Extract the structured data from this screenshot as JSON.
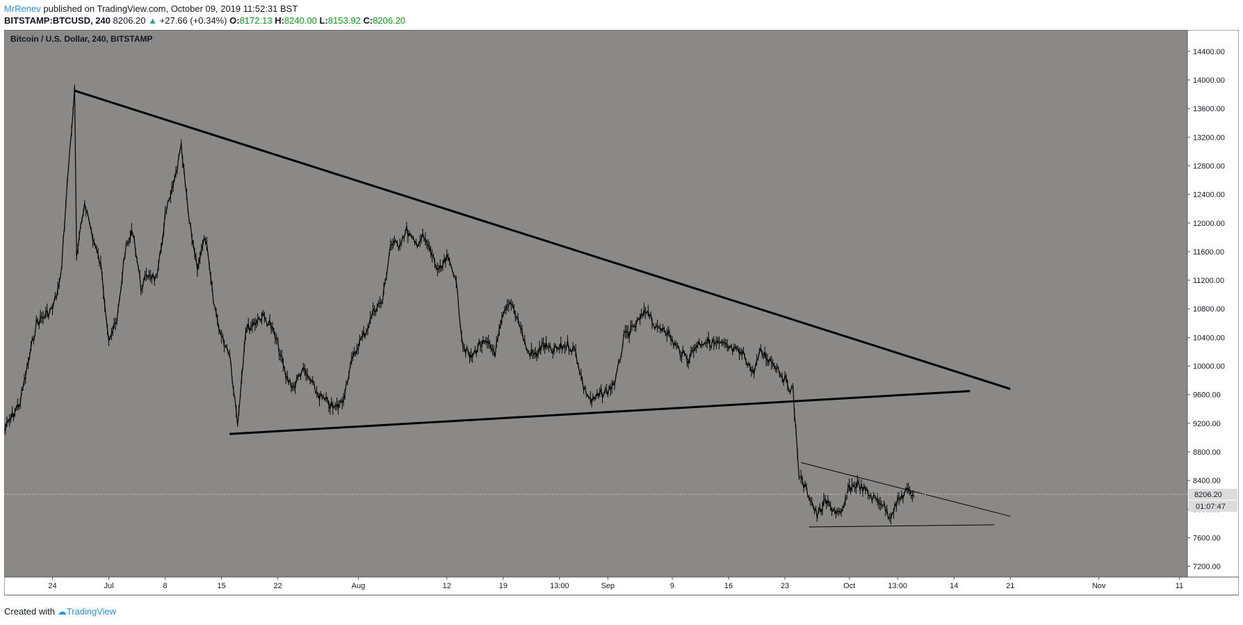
{
  "header": {
    "author": "MrRenev",
    "published_text": "published on TradingView.com, October 09, 2019 11:52:31 BST"
  },
  "quote": {
    "symbol": "BITSTAMP:BTCUSD, 240",
    "last": "8206.20",
    "change": "+27.66 (+0.34%)",
    "o_label": "O:",
    "o": "8172.13",
    "h_label": "H:",
    "h": "8240.00",
    "l_label": "L:",
    "l": "8153.92",
    "c_label": "C:",
    "c": "8206.20"
  },
  "footer": {
    "created_with": "Created with",
    "brand": "TradingView"
  },
  "colors": {
    "pane_bg": "#8a8988",
    "candle": "#000000",
    "axis_bg": "#ffffff",
    "price_line": "#d0d0d0",
    "up": "#26a69a",
    "green": "#00a310",
    "brand": "#2196f3"
  },
  "chart_data": {
    "type": "candlestick",
    "title": "Bitcoin / U.S. Dollar, 240, BITSTAMP",
    "x_axis": "date",
    "x_range": [
      "2019-06-18",
      "2019-11-12"
    ],
    "ylim": [
      7050,
      14700
    ],
    "y_ticks": [
      7200,
      7600,
      8000,
      8400,
      8800,
      9200,
      9600,
      10000,
      10400,
      10800,
      11200,
      11600,
      12000,
      12400,
      12800,
      13200,
      13600,
      14000,
      14400
    ],
    "y_tick_labels": [
      "7200.00",
      "7600.00",
      "8000.00",
      "8400.00",
      "8800.00",
      "9200.00",
      "9600.00",
      "10000.00",
      "10400.00",
      "10800.00",
      "11200.00",
      "11600.00",
      "12000.00",
      "12400.00",
      "12800.00",
      "13200.00",
      "13600.00",
      "14000.00",
      "14400.00"
    ],
    "x_ticks": [
      {
        "date": "2019-06-24",
        "label": "24"
      },
      {
        "date": "2019-07-01",
        "label": "Jul"
      },
      {
        "date": "2019-07-08",
        "label": "8"
      },
      {
        "date": "2019-07-15",
        "label": "15"
      },
      {
        "date": "2019-07-22",
        "label": "22"
      },
      {
        "date": "2019-08-01",
        "label": "Aug"
      },
      {
        "date": "2019-08-12",
        "label": "12"
      },
      {
        "date": "2019-08-19",
        "label": "19"
      },
      {
        "date": "2019-08-26",
        "label": "13:00"
      },
      {
        "date": "2019-09-01",
        "label": "Sep"
      },
      {
        "date": "2019-09-09",
        "label": "9"
      },
      {
        "date": "2019-09-16",
        "label": "16"
      },
      {
        "date": "2019-09-23",
        "label": "23"
      },
      {
        "date": "2019-10-01",
        "label": "Oct"
      },
      {
        "date": "2019-10-07",
        "label": "13:00"
      },
      {
        "date": "2019-10-14",
        "label": "14"
      },
      {
        "date": "2019-10-21",
        "label": "21"
      },
      {
        "date": "2019-11-01",
        "label": "Nov"
      },
      {
        "date": "2019-11-11",
        "label": "11"
      }
    ],
    "price_path": [
      {
        "x": "2019-06-18",
        "y": 9100
      },
      {
        "x": "2019-06-20",
        "y": 9500
      },
      {
        "x": "2019-06-22",
        "y": 10600
      },
      {
        "x": "2019-06-24",
        "y": 10800
      },
      {
        "x": "2019-06-25",
        "y": 11200
      },
      {
        "x": "2019-06-26",
        "y": 12800
      },
      {
        "x": "2019-06-26T18:00",
        "y": 13850
      },
      {
        "x": "2019-06-27",
        "y": 11500
      },
      {
        "x": "2019-06-28",
        "y": 12300
      },
      {
        "x": "2019-06-29",
        "y": 11800
      },
      {
        "x": "2019-06-30",
        "y": 11400
      },
      {
        "x": "2019-07-01",
        "y": 10400
      },
      {
        "x": "2019-07-02",
        "y": 10600
      },
      {
        "x": "2019-07-03",
        "y": 11600
      },
      {
        "x": "2019-07-04",
        "y": 11900
      },
      {
        "x": "2019-07-05",
        "y": 11100
      },
      {
        "x": "2019-07-06",
        "y": 11300
      },
      {
        "x": "2019-07-07",
        "y": 11200
      },
      {
        "x": "2019-07-08",
        "y": 12100
      },
      {
        "x": "2019-07-09",
        "y": 12500
      },
      {
        "x": "2019-07-10",
        "y": 13050
      },
      {
        "x": "2019-07-11",
        "y": 12000
      },
      {
        "x": "2019-07-12",
        "y": 11400
      },
      {
        "x": "2019-07-13",
        "y": 11800
      },
      {
        "x": "2019-07-14",
        "y": 10900
      },
      {
        "x": "2019-07-15",
        "y": 10400
      },
      {
        "x": "2019-07-16",
        "y": 10200
      },
      {
        "x": "2019-07-17",
        "y": 9200
      },
      {
        "x": "2019-07-18",
        "y": 10500
      },
      {
        "x": "2019-07-19",
        "y": 10600
      },
      {
        "x": "2019-07-20",
        "y": 10700
      },
      {
        "x": "2019-07-21",
        "y": 10600
      },
      {
        "x": "2019-07-22",
        "y": 10300
      },
      {
        "x": "2019-07-23",
        "y": 9850
      },
      {
        "x": "2019-07-24",
        "y": 9700
      },
      {
        "x": "2019-07-25",
        "y": 9950
      },
      {
        "x": "2019-07-26",
        "y": 9800
      },
      {
        "x": "2019-07-27",
        "y": 9600
      },
      {
        "x": "2019-07-28",
        "y": 9500
      },
      {
        "x": "2019-07-29",
        "y": 9400
      },
      {
        "x": "2019-07-30",
        "y": 9500
      },
      {
        "x": "2019-07-31",
        "y": 10000
      },
      {
        "x": "2019-08-01",
        "y": 10300
      },
      {
        "x": "2019-08-02",
        "y": 10500
      },
      {
        "x": "2019-08-03",
        "y": 10800
      },
      {
        "x": "2019-08-04",
        "y": 10900
      },
      {
        "x": "2019-08-05",
        "y": 11700
      },
      {
        "x": "2019-08-06",
        "y": 11700
      },
      {
        "x": "2019-08-07",
        "y": 11900
      },
      {
        "x": "2019-08-08",
        "y": 11700
      },
      {
        "x": "2019-08-09",
        "y": 11800
      },
      {
        "x": "2019-08-10",
        "y": 11600
      },
      {
        "x": "2019-08-11",
        "y": 11300
      },
      {
        "x": "2019-08-12",
        "y": 11500
      },
      {
        "x": "2019-08-13",
        "y": 11300
      },
      {
        "x": "2019-08-14",
        "y": 10300
      },
      {
        "x": "2019-08-15",
        "y": 10100
      },
      {
        "x": "2019-08-16",
        "y": 10300
      },
      {
        "x": "2019-08-17",
        "y": 10300
      },
      {
        "x": "2019-08-18",
        "y": 10200
      },
      {
        "x": "2019-08-19",
        "y": 10700
      },
      {
        "x": "2019-08-20",
        "y": 10900
      },
      {
        "x": "2019-08-21",
        "y": 10600
      },
      {
        "x": "2019-08-22",
        "y": 10200
      },
      {
        "x": "2019-08-23",
        "y": 10150
      },
      {
        "x": "2019-08-24",
        "y": 10300
      },
      {
        "x": "2019-08-25",
        "y": 10200
      },
      {
        "x": "2019-08-26",
        "y": 10250
      },
      {
        "x": "2019-08-27",
        "y": 10300
      },
      {
        "x": "2019-08-28",
        "y": 10200
      },
      {
        "x": "2019-08-29",
        "y": 9700
      },
      {
        "x": "2019-08-30",
        "y": 9500
      },
      {
        "x": "2019-08-31",
        "y": 9600
      },
      {
        "x": "2019-09-01",
        "y": 9650
      },
      {
        "x": "2019-09-02",
        "y": 9800
      },
      {
        "x": "2019-09-03",
        "y": 10400
      },
      {
        "x": "2019-09-04",
        "y": 10500
      },
      {
        "x": "2019-09-05",
        "y": 10650
      },
      {
        "x": "2019-09-06",
        "y": 10800
      },
      {
        "x": "2019-09-07",
        "y": 10500
      },
      {
        "x": "2019-09-08",
        "y": 10550
      },
      {
        "x": "2019-09-09",
        "y": 10350
      },
      {
        "x": "2019-09-10",
        "y": 10200
      },
      {
        "x": "2019-09-11",
        "y": 10100
      },
      {
        "x": "2019-09-12",
        "y": 10300
      },
      {
        "x": "2019-09-13",
        "y": 10350
      },
      {
        "x": "2019-09-14",
        "y": 10320
      },
      {
        "x": "2019-09-15",
        "y": 10300
      },
      {
        "x": "2019-09-16",
        "y": 10250
      },
      {
        "x": "2019-09-17",
        "y": 10200
      },
      {
        "x": "2019-09-18",
        "y": 10150
      },
      {
        "x": "2019-09-19",
        "y": 9900
      },
      {
        "x": "2019-09-20",
        "y": 10200
      },
      {
        "x": "2019-09-21",
        "y": 10100
      },
      {
        "x": "2019-09-22",
        "y": 10000
      },
      {
        "x": "2019-09-23",
        "y": 9800
      },
      {
        "x": "2019-09-24",
        "y": 9650
      },
      {
        "x": "2019-09-24T18:00",
        "y": 8500
      },
      {
        "x": "2019-09-25",
        "y": 8400
      },
      {
        "x": "2019-09-26",
        "y": 8200
      },
      {
        "x": "2019-09-27",
        "y": 7900
      },
      {
        "x": "2019-09-28",
        "y": 8100
      },
      {
        "x": "2019-09-29",
        "y": 8000
      },
      {
        "x": "2019-09-30",
        "y": 7900
      },
      {
        "x": "2019-10-01",
        "y": 8300
      },
      {
        "x": "2019-10-02",
        "y": 8350
      },
      {
        "x": "2019-10-03",
        "y": 8250
      },
      {
        "x": "2019-10-04",
        "y": 8150
      },
      {
        "x": "2019-10-05",
        "y": 8100
      },
      {
        "x": "2019-10-06",
        "y": 7900
      },
      {
        "x": "2019-10-07",
        "y": 8100
      },
      {
        "x": "2019-10-08",
        "y": 8250
      },
      {
        "x": "2019-10-09",
        "y": 8206
      }
    ],
    "trendlines": [
      {
        "name": "upper",
        "from": {
          "x": "2019-06-26T18:00",
          "y": 13850
        },
        "to": {
          "x": "2019-10-21",
          "y": 9680
        },
        "style": "thick"
      },
      {
        "name": "lower",
        "from": {
          "x": "2019-07-16",
          "y": 9050
        },
        "to": {
          "x": "2019-10-16",
          "y": 9650
        },
        "style": "thick"
      },
      {
        "name": "wedge-top",
        "from": {
          "x": "2019-09-25",
          "y": 8650
        },
        "to": {
          "x": "2019-10-21",
          "y": 7900
        },
        "style": "thin"
      },
      {
        "name": "wedge-bottom",
        "from": {
          "x": "2019-09-26",
          "y": 7750
        },
        "to": {
          "x": "2019-10-19",
          "y": 7780
        },
        "style": "thin"
      }
    ],
    "last_price": 8206.2,
    "last_price_label": "8206.20",
    "countdown_label": "01:07:47"
  }
}
